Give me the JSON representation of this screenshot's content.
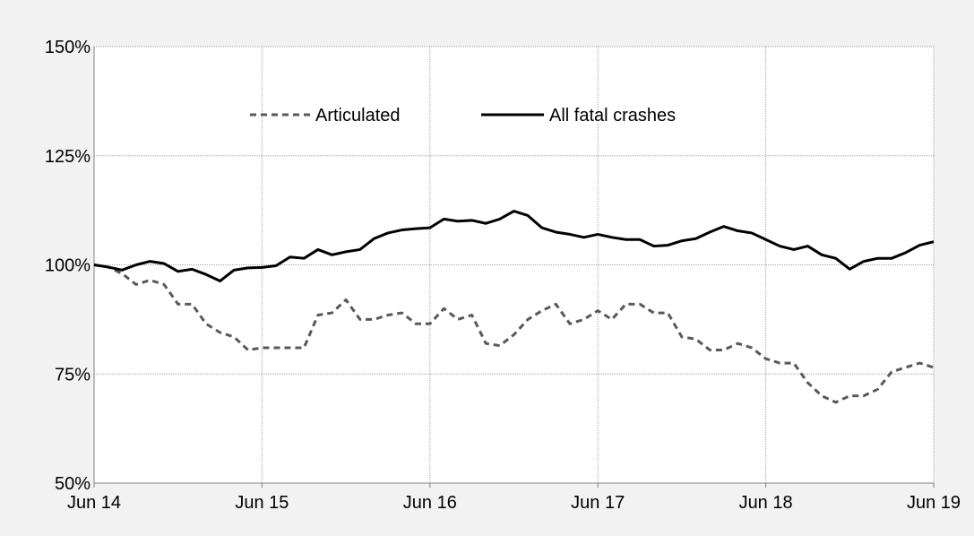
{
  "chart_data": {
    "type": "line",
    "title": "",
    "xlabel": "",
    "ylabel": "",
    "x_ticks": [
      "Jun 14",
      "Jun 15",
      "Jun 16",
      "Jun 17",
      "Jun 18",
      "Jun 19"
    ],
    "y_ticks": [
      "50%",
      "75%",
      "100%",
      "125%",
      "150%"
    ],
    "ylim": [
      50,
      150
    ],
    "y_unit": "percent",
    "x_range_months": [
      "Jun 14",
      "Jun 19"
    ],
    "grid": true,
    "legend_position": "top-center",
    "series": [
      {
        "name": "Articulated",
        "style": "dashed",
        "color": "#595959",
        "values": [
          100,
          99.5,
          98,
          95.5,
          96.5,
          95.5,
          91,
          91,
          86.5,
          84.5,
          83.5,
          80.5,
          81,
          81,
          81,
          81,
          88.5,
          89,
          92,
          87.5,
          87.5,
          88.5,
          89,
          86.5,
          86.5,
          90,
          87.5,
          88.5,
          82,
          81.5,
          84,
          87.5,
          89.5,
          91,
          86.5,
          87.5,
          89.5,
          87.5,
          91,
          91,
          89,
          89,
          83.5,
          83,
          80.5,
          80.5,
          82,
          81,
          78.5,
          77.5,
          77.5,
          73,
          70,
          68.5,
          70,
          70,
          71.5,
          75.5,
          76.5,
          77.5,
          76.5
        ]
      },
      {
        "name": "All fatal crashes",
        "style": "solid",
        "color": "#000000",
        "values": [
          100,
          99.5,
          98.8,
          100,
          100.8,
          100.3,
          98.5,
          99,
          97.8,
          96.3,
          98.8,
          99.3,
          99.4,
          99.8,
          101.8,
          101.5,
          103.5,
          102.3,
          103,
          103.5,
          106,
          107.3,
          108,
          108.3,
          108.5,
          110.5,
          110,
          110.2,
          109.5,
          110.5,
          112.3,
          111.3,
          108.5,
          107.5,
          107,
          106.3,
          107,
          106.3,
          105.8,
          105.8,
          104.3,
          104.5,
          105.5,
          106,
          107.5,
          108.8,
          107.8,
          107.3,
          105.8,
          104.3,
          103.5,
          104.3,
          102.3,
          101.5,
          99,
          100.8,
          101.5,
          101.5,
          102.8,
          104.5,
          105.3
        ]
      }
    ]
  }
}
